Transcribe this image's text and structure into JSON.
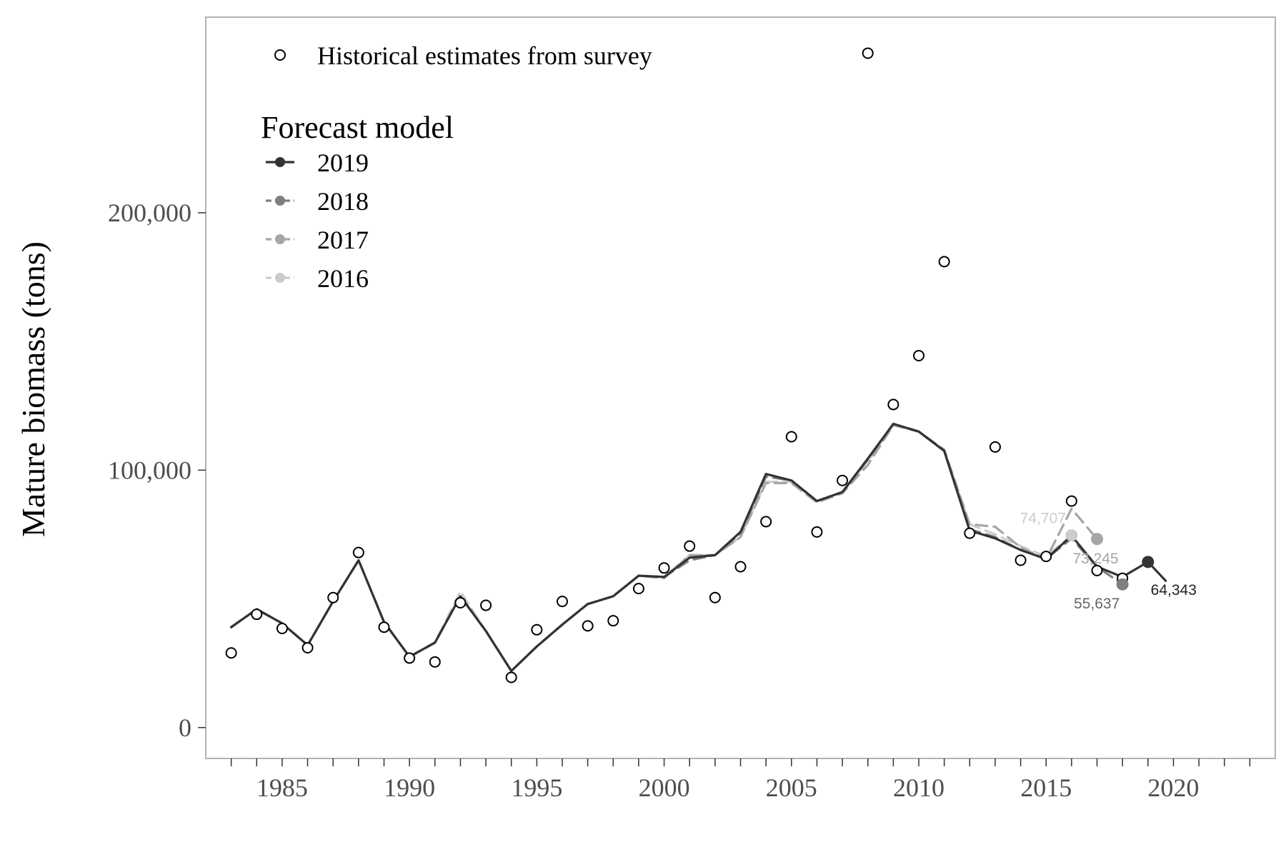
{
  "chart_data": {
    "type": "line",
    "ylabel": "Mature biomass (tons)",
    "xlim": [
      1982,
      2024
    ],
    "ylim": [
      -12000,
      276000
    ],
    "x_ticks": [
      1985,
      1990,
      1995,
      2000,
      2005,
      2010,
      2015,
      2020
    ],
    "y_ticks": [
      0,
      100000,
      200000
    ],
    "y_tick_labels": [
      "0",
      "100,000",
      "200,000"
    ],
    "grid": false,
    "legend": {
      "placement": "top-left",
      "survey_label": "Historical estimates from survey",
      "forecast_title": "Forecast model"
    },
    "survey": {
      "name": "Historical estimates from survey",
      "x": [
        1983,
        1984,
        1985,
        1986,
        1987,
        1988,
        1989,
        1990,
        1991,
        1992,
        1993,
        1994,
        1995,
        1996,
        1997,
        1998,
        1999,
        2000,
        2001,
        2002,
        2003,
        2004,
        2005,
        2006,
        2007,
        2008,
        2009,
        2010,
        2011,
        2012,
        2013,
        2014,
        2015,
        2016,
        2017,
        2018
      ],
      "y": [
        29000,
        44000,
        38500,
        31000,
        50500,
        68000,
        39000,
        27000,
        25500,
        48500,
        47500,
        19500,
        38000,
        49000,
        39500,
        41500,
        54000,
        62000,
        70500,
        50500,
        62500,
        80000,
        113000,
        76000,
        96000,
        262000,
        125500,
        144500,
        181000,
        75500,
        109000,
        65000,
        66500,
        88000,
        61000,
        58000
      ]
    },
    "series": [
      {
        "name": "2019",
        "color": "#333333",
        "dash": "solid",
        "x": [
          1983,
          1984,
          1985,
          1986,
          1987,
          1988,
          1989,
          1990,
          1991,
          1992,
          1993,
          1994,
          1995,
          1996,
          1997,
          1998,
          1999,
          2000,
          2001,
          2002,
          2003,
          2004,
          2005,
          2006,
          2007,
          2008,
          2009,
          2010,
          2011,
          2012,
          2013,
          2014,
          2015,
          2016,
          2017,
          2018,
          2019,
          2019.7
        ],
        "y": [
          39000,
          46000,
          40500,
          32000,
          49000,
          65000,
          41000,
          27500,
          33000,
          51000,
          37500,
          22000,
          31500,
          40000,
          48000,
          51000,
          59000,
          58500,
          66000,
          67000,
          76000,
          98500,
          96000,
          88000,
          91500,
          104500,
          118000,
          115000,
          107500,
          76500,
          73500,
          69000,
          65500,
          74500,
          62500,
          58500,
          64343,
          57000
        ],
        "labels": [
          {
            "x": 2019,
            "y": 64343,
            "text": "64,343"
          }
        ]
      },
      {
        "name": "2018",
        "color": "#7f7f7f",
        "dash": "dashed",
        "x": [
          1983,
          1984,
          1985,
          1986,
          1987,
          1988,
          1989,
          1990,
          1991,
          1992,
          1993,
          1994,
          1995,
          1996,
          1997,
          1998,
          1999,
          2000,
          2001,
          2002,
          2003,
          2004,
          2005,
          2006,
          2007,
          2008,
          2009,
          2010,
          2011,
          2012,
          2013,
          2014,
          2015,
          2016,
          2017,
          2018
        ],
        "y": [
          39000,
          46000,
          40500,
          32000,
          49000,
          65000,
          41000,
          27500,
          33000,
          51000,
          37500,
          22000,
          31500,
          40000,
          48000,
          51000,
          59000,
          58500,
          65000,
          67000,
          75500,
          97500,
          96000,
          88000,
          91500,
          104000,
          118000,
          115000,
          107500,
          77000,
          74000,
          69000,
          65500,
          73500,
          62500,
          55637
        ],
        "labels": [
          {
            "x": 2018,
            "y": 55637,
            "text": "55,637"
          }
        ]
      },
      {
        "name": "2017",
        "color": "#a6a6a6",
        "dash": "dashed",
        "x": [
          1983,
          1984,
          1985,
          1986,
          1987,
          1988,
          1989,
          1990,
          1991,
          1992,
          1993,
          1994,
          1995,
          1996,
          1997,
          1998,
          1999,
          2000,
          2001,
          2002,
          2003,
          2004,
          2005,
          2006,
          2007,
          2008,
          2009,
          2010,
          2011,
          2012,
          2013,
          2014,
          2015,
          2016,
          2017
        ],
        "y": [
          39000,
          46000,
          40500,
          32000,
          49000,
          65000,
          41000,
          27500,
          33000,
          51000,
          37500,
          22000,
          31500,
          40000,
          48000,
          51000,
          59000,
          58000,
          67000,
          67000,
          74000,
          95000,
          95000,
          87500,
          91000,
          102000,
          117500,
          115000,
          108000,
          79000,
          78000,
          70000,
          65500,
          85000,
          73245
        ],
        "labels": [
          {
            "x": 2017,
            "y": 73245,
            "text": "73,245"
          }
        ]
      },
      {
        "name": "2016",
        "color": "#cccccc",
        "dash": "dashed",
        "x": [
          1983,
          1984,
          1985,
          1986,
          1987,
          1988,
          1989,
          1990,
          1991,
          1992,
          1993,
          1994,
          1995,
          1996,
          1997,
          1998,
          1999,
          2000,
          2001,
          2002,
          2003,
          2004,
          2005,
          2006,
          2007,
          2008,
          2009,
          2010,
          2011,
          2012,
          2013,
          2014,
          2015,
          2016
        ],
        "y": [
          39000,
          46000,
          40500,
          32000,
          49000,
          65000,
          41000,
          27500,
          33000,
          53000,
          37500,
          22000,
          31500,
          40000,
          48000,
          51000,
          59000,
          58500,
          67000,
          67000,
          74000,
          95500,
          95500,
          88000,
          91500,
          103500,
          117500,
          115000,
          107500,
          79000,
          75000,
          70500,
          66500,
          74707
        ],
        "labels": [
          {
            "x": 2016,
            "y": 74707,
            "text": "74,707"
          }
        ]
      }
    ]
  }
}
